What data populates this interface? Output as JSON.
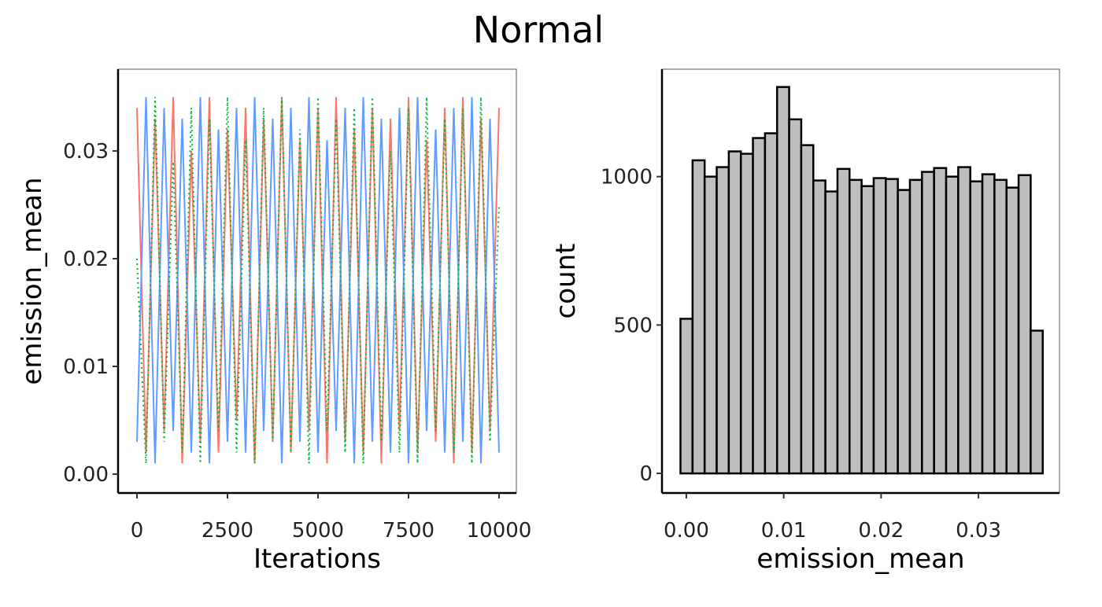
{
  "title": "Normal",
  "chart_data": [
    {
      "type": "line",
      "xlabel": "Iterations",
      "ylabel": "emission_mean",
      "x": [
        0,
        250,
        500,
        750,
        1000,
        1250,
        1500,
        1750,
        2000,
        2250,
        2500,
        2750,
        3000,
        3250,
        3500,
        3750,
        4000,
        4250,
        4500,
        4750,
        5000,
        5250,
        5500,
        5750,
        6000,
        6250,
        6500,
        6750,
        7000,
        7250,
        7500,
        7750,
        8000,
        8250,
        8500,
        8750,
        9000,
        9250,
        9500,
        9750,
        10000
      ],
      "series": [
        {
          "color": "#f8766d",
          "linestyle": "solid",
          "values": [
            0.034,
            0.002,
            0.033,
            0.004,
            0.035,
            0.001,
            0.03,
            0.003,
            0.035,
            0.002,
            0.032,
            0.005,
            0.034,
            0.001,
            0.033,
            0.003,
            0.035,
            0.002,
            0.031,
            0.004,
            0.034,
            0.001,
            0.035,
            0.003,
            0.032,
            0.002,
            0.034,
            0.001,
            0.033,
            0.004,
            0.035,
            0.002,
            0.031,
            0.003,
            0.034,
            0.001,
            0.035,
            0.002,
            0.033,
            0.004,
            0.034
          ]
        },
        {
          "color": "#619cff",
          "linestyle": "solid",
          "values": [
            0.003,
            0.035,
            0.001,
            0.034,
            0.004,
            0.033,
            0.002,
            0.035,
            0.001,
            0.032,
            0.003,
            0.034,
            0.002,
            0.035,
            0.004,
            0.033,
            0.001,
            0.034,
            0.003,
            0.035,
            0.002,
            0.031,
            0.004,
            0.034,
            0.001,
            0.035,
            0.003,
            0.033,
            0.002,
            0.034,
            0.001,
            0.035,
            0.004,
            0.032,
            0.002,
            0.034,
            0.003,
            0.035,
            0.001,
            0.033,
            0.002
          ]
        },
        {
          "color": "#00ba38",
          "linestyle": "dotted",
          "values": [
            0.02,
            0.001,
            0.035,
            0.003,
            0.029,
            0.002,
            0.034,
            0.001,
            0.033,
            0.004,
            0.035,
            0.002,
            0.031,
            0.001,
            0.034,
            0.003,
            0.035,
            0.002,
            0.032,
            0.001,
            0.035,
            0.004,
            0.033,
            0.002,
            0.034,
            0.001,
            0.035,
            0.003,
            0.03,
            0.002,
            0.034,
            0.001,
            0.035,
            0.004,
            0.033,
            0.002,
            0.034,
            0.001,
            0.035,
            0.003,
            0.025
          ]
        }
      ],
      "xlim": [
        -522,
        10478
      ],
      "xticks": [
        0,
        2500,
        5000,
        7500,
        10000
      ],
      "ylim": [
        -0.00175,
        0.03759
      ],
      "yticks": [
        {
          "value": 0,
          "label": "0.00"
        },
        {
          "value": 0.01,
          "label": "0.01"
        },
        {
          "value": 0.02,
          "label": "0.02"
        },
        {
          "value": 0.03,
          "label": "0.03"
        }
      ]
    },
    {
      "type": "histogram",
      "xlabel": "emission_mean",
      "ylabel": "count",
      "color": "#bebebe",
      "edgecolor": "#000000",
      "bins": [
        -0.0006,
        0.00064,
        0.00188,
        0.00312,
        0.00436,
        0.0056,
        0.00684,
        0.00808,
        0.00932,
        0.01056,
        0.0118,
        0.01304,
        0.01428,
        0.01552,
        0.01676,
        0.018,
        0.01924,
        0.02048,
        0.02172,
        0.02296,
        0.0242,
        0.02544,
        0.02668,
        0.02792,
        0.02916,
        0.0304,
        0.03164,
        0.03288,
        0.03412,
        0.03536,
        0.0366
      ],
      "values": [
        521,
        1055,
        1000,
        1032,
        1085,
        1077,
        1130,
        1146,
        1302,
        1193,
        1106,
        987,
        950,
        1026,
        989,
        968,
        995,
        992,
        955,
        989,
        1016,
        1029,
        1000,
        1032,
        984,
        1008,
        989,
        963,
        1005,
        481
      ],
      "xlim": [
        -0.0025,
        0.03832
      ],
      "xticks": [
        {
          "value": 0,
          "label": "0.00"
        },
        {
          "value": 0.01,
          "label": "0.01"
        },
        {
          "value": 0.02,
          "label": "0.02"
        },
        {
          "value": 0.03,
          "label": "0.03"
        }
      ],
      "ylim": [
        -66,
        1362
      ],
      "yticks": [
        0,
        500,
        1000
      ]
    }
  ]
}
